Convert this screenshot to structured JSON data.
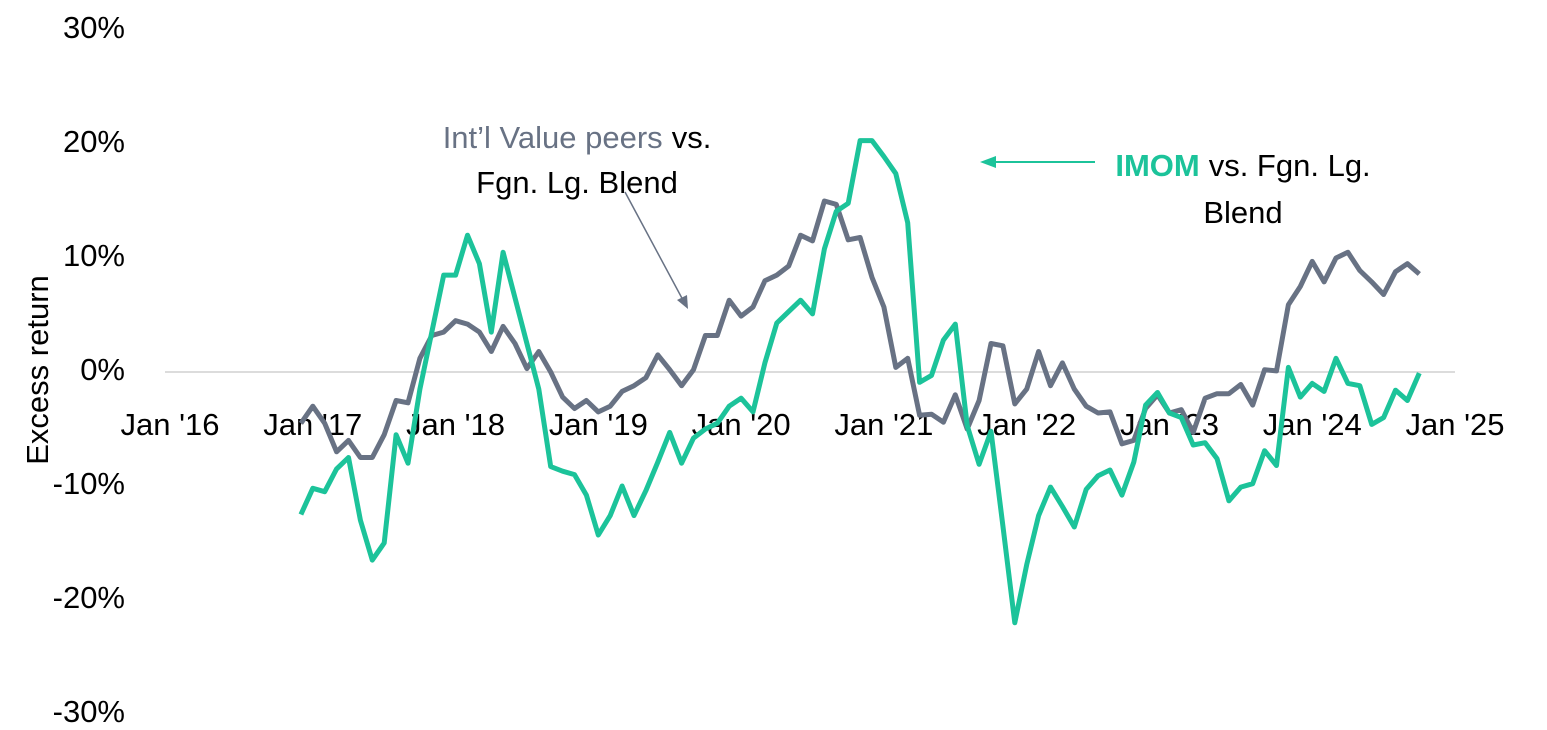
{
  "chart_data": {
    "type": "line",
    "y_label": "Excess return",
    "ylim": [
      -30,
      30
    ],
    "yticks": [
      {
        "value": -30,
        "label": "-30%"
      },
      {
        "value": -20,
        "label": "-20%"
      },
      {
        "value": -10,
        "label": "-10%"
      },
      {
        "value": 0,
        "label": "0%"
      },
      {
        "value": 10,
        "label": "10%"
      },
      {
        "value": 20,
        "label": "20%"
      },
      {
        "value": 30,
        "label": "30%"
      }
    ],
    "xlim": [
      "2016-01",
      "2025-01"
    ],
    "xticks": [
      {
        "value": "2016-01",
        "label": "Jan '16"
      },
      {
        "value": "2017-01",
        "label": "Jan '17"
      },
      {
        "value": "2018-01",
        "label": "Jan '18"
      },
      {
        "value": "2019-01",
        "label": "Jan '19"
      },
      {
        "value": "2020-01",
        "label": "Jan '20"
      },
      {
        "value": "2021-01",
        "label": "Jan '21"
      },
      {
        "value": "2022-01",
        "label": "Jan '22"
      },
      {
        "value": "2023-01",
        "label": "Jan '23"
      },
      {
        "value": "2024-01",
        "label": "Jan '24"
      },
      {
        "value": "2025-01",
        "label": "Jan '25"
      }
    ],
    "x": [
      "2016-12",
      "2017-01",
      "2017-02",
      "2017-03",
      "2017-04",
      "2017-05",
      "2017-06",
      "2017-07",
      "2017-08",
      "2017-09",
      "2017-10",
      "2017-11",
      "2017-12",
      "2018-01",
      "2018-02",
      "2018-03",
      "2018-04",
      "2018-05",
      "2018-06",
      "2018-07",
      "2018-08",
      "2018-09",
      "2018-10",
      "2018-11",
      "2018-12",
      "2019-01",
      "2019-02",
      "2019-03",
      "2019-04",
      "2019-05",
      "2019-06",
      "2019-07",
      "2019-08",
      "2019-09",
      "2019-10",
      "2019-11",
      "2019-12",
      "2020-01",
      "2020-02",
      "2020-03",
      "2020-04",
      "2020-05",
      "2020-06",
      "2020-07",
      "2020-08",
      "2020-09",
      "2020-10",
      "2020-11",
      "2020-12",
      "2021-01",
      "2021-02",
      "2021-03",
      "2021-04",
      "2021-05",
      "2021-06",
      "2021-07",
      "2021-08",
      "2021-09",
      "2021-10",
      "2021-11",
      "2021-12",
      "2022-01",
      "2022-02",
      "2022-03",
      "2022-04",
      "2022-05",
      "2022-06",
      "2022-07",
      "2022-08",
      "2022-09",
      "2022-10",
      "2022-11",
      "2022-12",
      "2023-01",
      "2023-02",
      "2023-03",
      "2023-04",
      "2023-05",
      "2023-06",
      "2023-07",
      "2023-08",
      "2023-09",
      "2023-10",
      "2023-11",
      "2023-12",
      "2024-01",
      "2024-02",
      "2024-03",
      "2024-04",
      "2024-05",
      "2024-06",
      "2024-07",
      "2024-08",
      "2024-09",
      "2024-10"
    ],
    "series": [
      {
        "name": "Int’l Value peers vs. Fgn. Lg. Blend",
        "color": "#687284",
        "values": [
          -4.5,
          -3,
          -4.5,
          -7,
          -6,
          -7.5,
          -7.5,
          -5.5,
          -2.5,
          -2.7,
          1.2,
          3.2,
          3.5,
          4.5,
          4.2,
          3.5,
          1.8,
          4,
          2.5,
          0.3,
          1.8,
          0,
          -2.2,
          -3.2,
          -2.5,
          -3.5,
          -3,
          -1.7,
          -1.2,
          -0.5,
          1.5,
          0.2,
          -1.2,
          0.2,
          3.2,
          3.2,
          6.3,
          4.9,
          5.7,
          8,
          8.5,
          9.3,
          12,
          11.5,
          15,
          14.7,
          11.6,
          11.8,
          8.3,
          5.7,
          0.4,
          1.2,
          -3.8,
          -3.7,
          -4.4,
          -2,
          -5,
          -2.5,
          2.5,
          2.3,
          -2.8,
          -1.5,
          1.8,
          -1.2,
          0.8,
          -1.5,
          -3,
          -3.6,
          -3.5,
          -6.3,
          -6,
          -3.2,
          -2,
          -3.6,
          -3.3,
          -5.3,
          -2.3,
          -1.9,
          -1.9,
          -1.1,
          -2.9,
          0.2,
          0.1,
          5.9,
          7.5,
          9.7,
          7.9,
          10,
          10.5,
          8.9,
          7.9,
          6.8,
          8.8,
          9.5,
          8.6
        ]
      },
      {
        "name": "IMOM vs. Fgn. Lg. Blend",
        "color": "#1cc39a",
        "values": [
          -12.5,
          -10.2,
          -10.5,
          -8.5,
          -7.5,
          -13,
          -16.5,
          -15,
          -5.5,
          -8,
          -1.5,
          3.5,
          8.5,
          8.5,
          12,
          9.5,
          3.5,
          10.5,
          6.5,
          2.5,
          -1.5,
          -8.3,
          -8.7,
          -9,
          -10.8,
          -14.3,
          -12.6,
          -10,
          -12.6,
          -10.4,
          -7.9,
          -5.3,
          -8,
          -5.8,
          -5,
          -4.5,
          -3,
          -2.3,
          -3.5,
          0.8,
          4.3,
          5.3,
          6.3,
          5.1,
          10.8,
          14.1,
          14.8,
          20.3,
          20.3,
          18.9,
          17.4,
          13.1,
          -0.9,
          -0.3,
          2.8,
          4.2,
          -4.7,
          -8.1,
          -5.2,
          -13.5,
          -22,
          -16.9,
          -12.6,
          -10.1,
          -11.8,
          -13.6,
          -10.3,
          -9.1,
          -8.6,
          -10.8,
          -7.9,
          -2.9,
          -1.8,
          -3.6,
          -4,
          -6.4,
          -6.2,
          -7.6,
          -11.3,
          -10.1,
          -9.8,
          -6.9,
          -8.2,
          0.4,
          -2.2,
          -1,
          -1.7,
          1.2,
          -1,
          -1.2,
          -4.6,
          -4,
          -1.6,
          -2.5,
          -0.1
        ]
      }
    ],
    "annotations": [
      {
        "lines": [
          [
            {
              "text": "Int’l Value peers",
              "color": "#687284"
            },
            {
              "text": "vs."
            }
          ],
          [
            {
              "text": "Fgn. Lg. Blend"
            }
          ]
        ]
      },
      {
        "lines": [
          [
            {
              "text": "IMOM",
              "color": "#1cc39a",
              "bold": true
            },
            {
              "text": "vs. Fgn. Lg."
            }
          ],
          [
            {
              "text": "Blend"
            }
          ]
        ]
      }
    ]
  }
}
